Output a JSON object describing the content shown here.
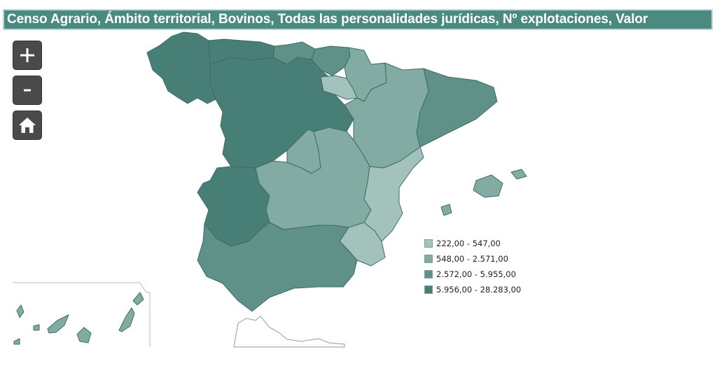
{
  "title": "Censo Agrario, Ámbito territorial, Bovinos, Todas las personalidades jurídicas, Nº explotaciones, Valor",
  "controls": {
    "zoom_in": "+",
    "zoom_out": "-",
    "home_icon": "home-icon"
  },
  "colors": {
    "class1": "#a3c2bc",
    "class2": "#82aba3",
    "class3": "#5f9189",
    "class4": "#477f76",
    "border": "#3f6b65",
    "title_bg": "#4a8a80"
  },
  "legend": [
    {
      "label": "222,00 - 547,00",
      "color": "#a3c2bc"
    },
    {
      "label": "548,00 - 2.571,00",
      "color": "#82aba3"
    },
    {
      "label": "2.572,00 - 5.955,00",
      "color": "#5f9189"
    },
    {
      "label": "5.956,00 - 28.283,00",
      "color": "#477f76"
    }
  ]
}
